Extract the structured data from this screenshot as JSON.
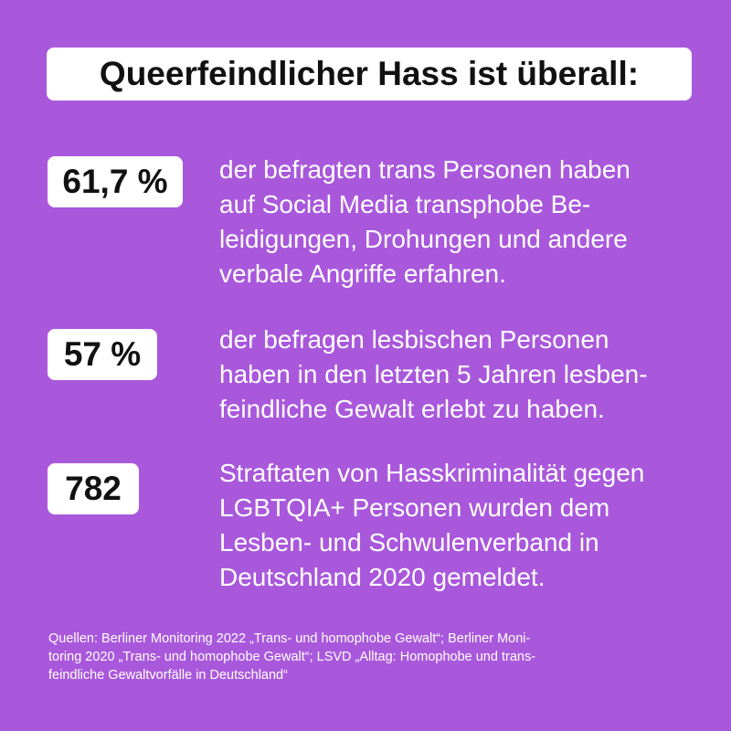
{
  "title": "Queerfeindlicher Hass ist überall:",
  "stats": [
    {
      "value": "61,7 %",
      "lines": [
        "der befragten trans Personen haben",
        "auf Social Media transphobe Be-",
        "leidigungen, Drohungen und andere",
        "verbale Angriffe erfahren."
      ]
    },
    {
      "value": "57 %",
      "lines": [
        "der befragen lesbischen Personen",
        "haben in den letzten 5 Jahren lesben-",
        "feindliche Gewalt erlebt zu haben."
      ]
    },
    {
      "value": "782",
      "lines": [
        "Straftaten von Hasskriminalität gegen",
        "LGBTQIA+ Personen wurden dem",
        "Lesben- und Schwulenverband in",
        "Deutschland 2020 gemeldet."
      ]
    }
  ],
  "sources": {
    "lines": [
      "Quellen: Berliner Monitoring 2022 „Trans- und homophobe Gewalt“; Berliner Moni-",
      "toring 2020 „Trans- und homophobe Gewalt“; LSVD „Alltag: Homophobe und trans-",
      "feindliche Gewaltvorfälle in Deutschland“"
    ]
  },
  "colors": {
    "background": "#a958dc",
    "box": "#ffffff",
    "text_dark": "#111111",
    "text_light": "#ffffff"
  }
}
